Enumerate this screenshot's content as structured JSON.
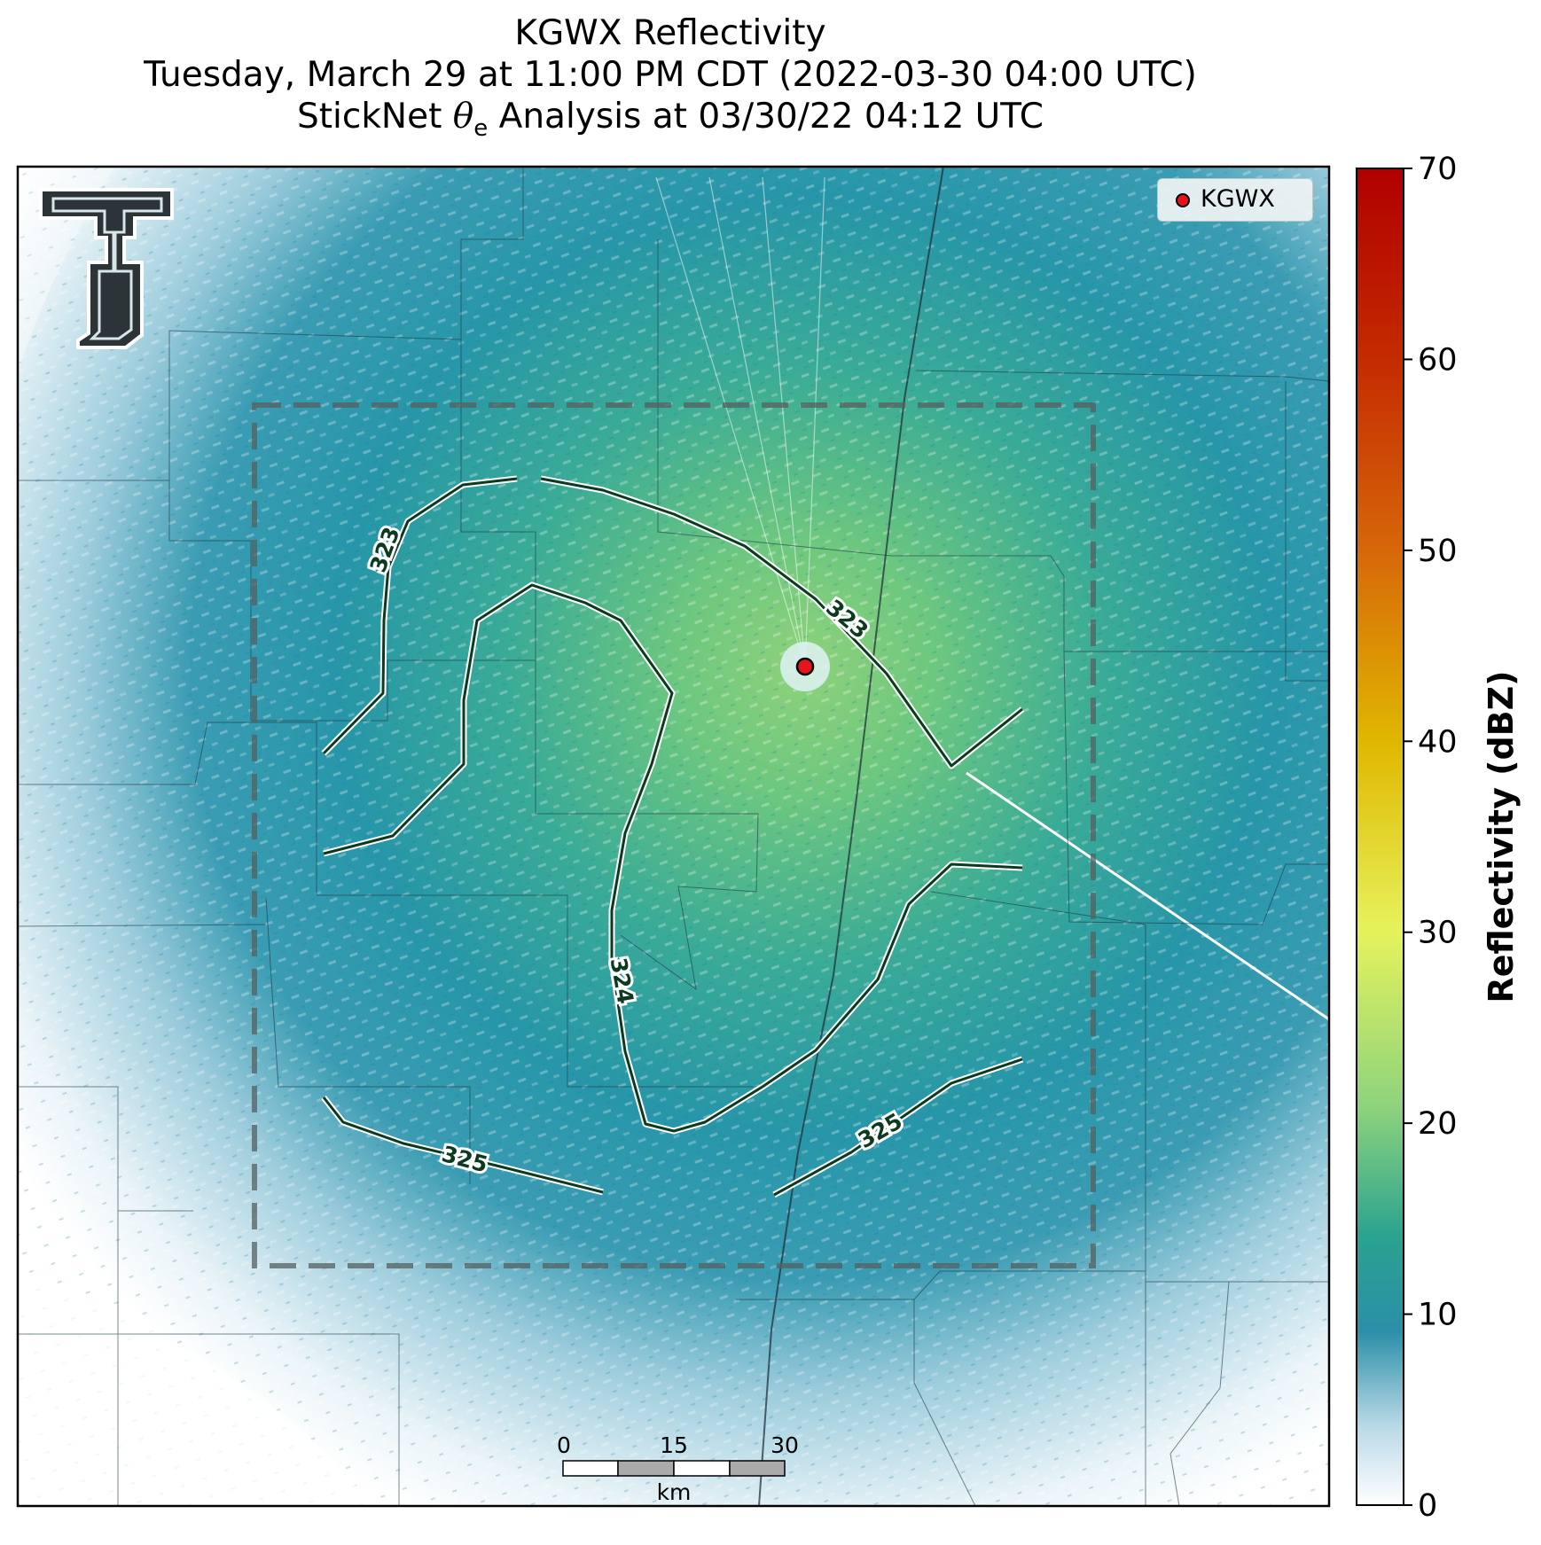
{
  "title": {
    "line1": "KGWX Reflectivity",
    "line2": "Tuesday, March 29 at 11:00 PM CDT (2022-03-30 04:00 UTC)",
    "line3_prefix": "StickNet ",
    "line3_symbol": "θ",
    "line3_subscript": "e",
    "line3_suffix": " Analysis at 03/30/22 04:12 UTC"
  },
  "legend": {
    "label": "KGWX",
    "marker_color": "#e8141c"
  },
  "colorbar": {
    "label": "Reflectivity (dBZ)",
    "ticks": [
      "0",
      "10",
      "20",
      "30",
      "40",
      "50",
      "60",
      "70"
    ],
    "range": [
      0,
      70
    ],
    "colors": [
      "#ffffff",
      "#2a8fa6",
      "#2aa68e",
      "#9ad77c",
      "#e8f05a",
      "#e2b400",
      "#d4560a",
      "#b40000"
    ]
  },
  "contours": [
    {
      "level": "323"
    },
    {
      "level": "323"
    },
    {
      "level": "324"
    },
    {
      "level": "325"
    },
    {
      "level": "325"
    }
  ],
  "scale_bar": {
    "ticks": [
      "0",
      "15",
      "30"
    ],
    "unit": "km"
  },
  "logo": {
    "name": "texas-tech-double-t"
  },
  "colors": {
    "background_echo": "#2596a8",
    "contour_line": "#0c3a1e",
    "domain_box": "#556060"
  }
}
